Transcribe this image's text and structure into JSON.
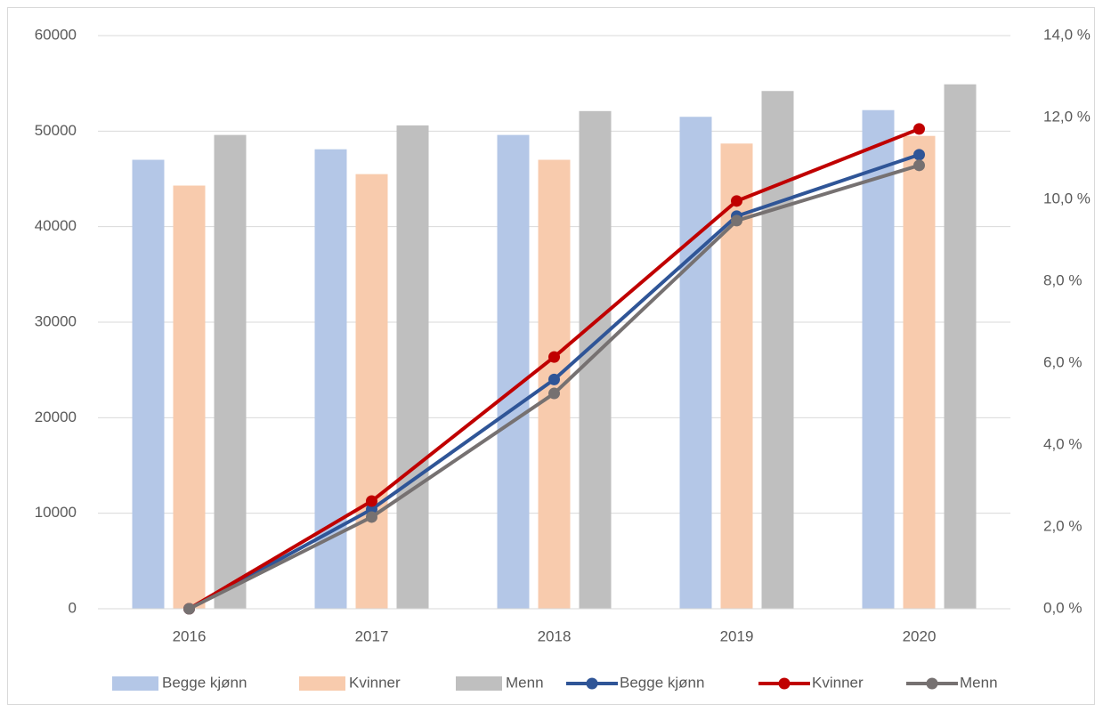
{
  "chart_data": {
    "type": "bar",
    "categories": [
      "2016",
      "2017",
      "2018",
      "2019",
      "2020"
    ],
    "series": [
      {
        "name": "Begge kjønn",
        "type": "bar",
        "color": "#b4c7e7",
        "values": [
          47000,
          48100,
          49600,
          51500,
          52200
        ]
      },
      {
        "name": "Kvinner",
        "type": "bar",
        "color": "#f8cbad",
        "values": [
          44300,
          45500,
          47000,
          48700,
          49500
        ]
      },
      {
        "name": "Menn",
        "type": "bar",
        "color": "#bfbfbf",
        "values": [
          49600,
          50600,
          52100,
          54200,
          54900
        ]
      },
      {
        "name": "Begge kjønn",
        "type": "line",
        "axis": "y2",
        "color": "#2f5597",
        "values": [
          0,
          2.43,
          5.6,
          9.59,
          11.09
        ]
      },
      {
        "name": "Kvinner",
        "type": "line",
        "axis": "y2",
        "color": "#c00000",
        "values": [
          0,
          2.63,
          6.15,
          9.96,
          11.72
        ]
      },
      {
        "name": "Menn",
        "type": "line",
        "axis": "y2",
        "color": "#767171",
        "values": [
          0,
          2.24,
          5.26,
          9.48,
          10.83
        ]
      }
    ],
    "ylim": [
      0,
      60000
    ],
    "yticks": [
      0,
      10000,
      20000,
      30000,
      40000,
      50000,
      60000
    ],
    "y2lim": [
      0,
      14
    ],
    "y2ticks": [
      {
        "value": 0,
        "label": "0,0 %"
      },
      {
        "value": 2,
        "label": "2,0 %"
      },
      {
        "value": 4,
        "label": "4,0 %"
      },
      {
        "value": 6,
        "label": "6,0 %"
      },
      {
        "value": 8,
        "label": "8,0 %"
      },
      {
        "value": 10,
        "label": "10,0 %"
      },
      {
        "value": 12,
        "label": "12,0 %"
      },
      {
        "value": 14,
        "label": "14,0 %"
      }
    ],
    "grid": true,
    "legend": "bottom"
  }
}
